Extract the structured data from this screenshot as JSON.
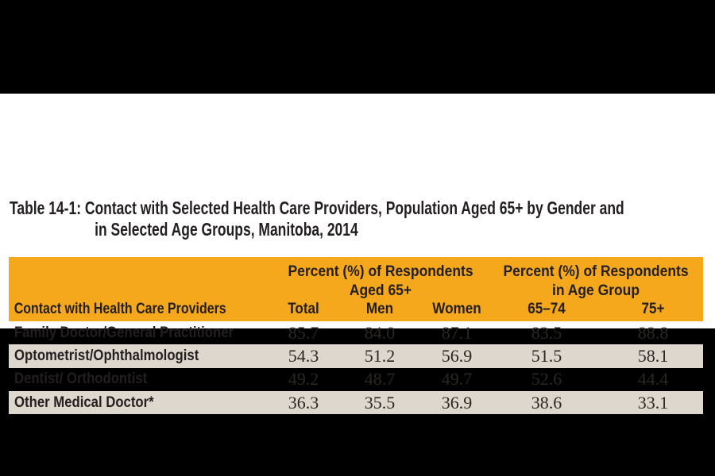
{
  "title": {
    "line1": "Table 14-1: Contact with Selected Health Care Providers, Population Aged 65+ by Gender and",
    "line2": "in Selected Age Groups, Manitoba, 2014"
  },
  "table": {
    "group_headers": [
      {
        "line1": "Percent (%) of Respondents",
        "line2": "Aged 65+"
      },
      {
        "line1": "Percent (%) of Respondents",
        "line2": "in Age Group"
      }
    ],
    "columns": {
      "label": "Contact with Health Care Providers",
      "total": "Total",
      "men": "Men",
      "women": "Women",
      "age6574": "65–74",
      "age75plus": "75+"
    },
    "rows": [
      {
        "label": "Family Doctor/General Practitioner",
        "values": [
          "85.7",
          "84.0",
          "87.1",
          "83.5",
          "88.8"
        ]
      },
      {
        "label": "Optometrist/Ophthalmologist",
        "values": [
          "54.3",
          "51.2",
          "56.9",
          "51.5",
          "58.1"
        ]
      },
      {
        "label": "Dentist/ Orthodontist",
        "values": [
          "49.2",
          "48.7",
          "49.7",
          "52.6",
          "44.4"
        ]
      },
      {
        "label": "Other Medical Doctor*",
        "values": [
          "36.3",
          "35.5",
          "36.9",
          "38.6",
          "33.1"
        ]
      }
    ]
  },
  "chart_data": {
    "type": "table",
    "title": "Table 14-1: Contact with Selected Health Care Providers, Population Aged 65+ by Gender and in Selected Age Groups, Manitoba, 2014",
    "row_header": "Contact with Health Care Providers",
    "column_groups": [
      "Percent (%) of Respondents Aged 65+",
      "Percent (%) of Respondents in Age Group"
    ],
    "columns": [
      "Total",
      "Men",
      "Women",
      "65–74",
      "75+"
    ],
    "rows": [
      {
        "label": "Family Doctor/General Practitioner",
        "values": [
          85.7,
          84.0,
          87.1,
          83.5,
          88.8
        ]
      },
      {
        "label": "Optometrist/Ophthalmologist",
        "values": [
          54.3,
          51.2,
          56.9,
          51.5,
          58.1
        ]
      },
      {
        "label": "Dentist/ Orthodontist",
        "values": [
          49.2,
          48.7,
          49.7,
          52.6,
          44.4
        ]
      },
      {
        "label": "Other Medical Doctor*",
        "values": [
          36.3,
          35.5,
          36.9,
          38.6,
          33.1
        ]
      }
    ]
  },
  "colors": {
    "letterbox_background": "#000000",
    "page_background": "#FFFFFF",
    "header_orange": "#F6A81D",
    "row_stripe_beige": "#DED7CD",
    "text_black": "#231F20"
  }
}
